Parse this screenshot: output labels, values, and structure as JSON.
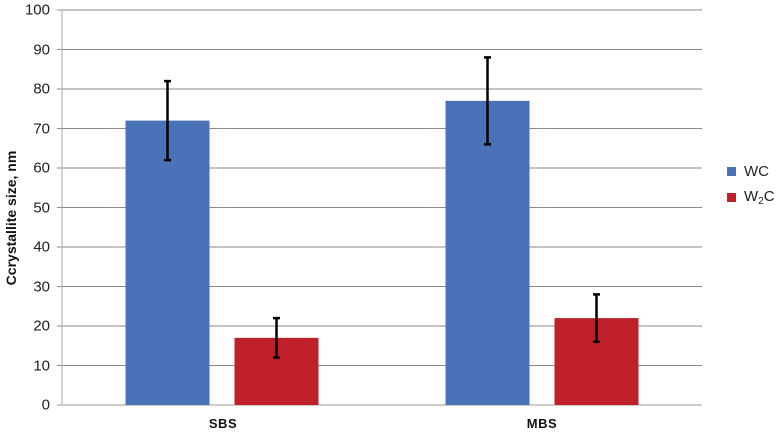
{
  "chart_data": {
    "type": "bar",
    "title": "",
    "xlabel": "",
    "ylabel": "Ccrystallite size, nm",
    "ylim": [
      0,
      100
    ],
    "yticks": [
      0,
      10,
      20,
      30,
      40,
      50,
      60,
      70,
      80,
      90,
      100
    ],
    "grid": true,
    "legend_position": "right",
    "categories": [
      "SBS",
      "MBS"
    ],
    "series": [
      {
        "name": "WC",
        "color": "#4a72b8",
        "values": [
          72,
          77
        ],
        "error_low": [
          62,
          66
        ],
        "error_high": [
          82,
          88
        ]
      },
      {
        "name": "W2C",
        "color": "#c0202a",
        "values": [
          17,
          22
        ],
        "error_low": [
          12,
          16
        ],
        "error_high": [
          22,
          28
        ]
      }
    ]
  },
  "legend": {
    "items": [
      {
        "label_main": "WC",
        "label_sub": "",
        "label_tail": ""
      },
      {
        "label_main": "W",
        "label_sub": "2",
        "label_tail": "C"
      }
    ]
  }
}
